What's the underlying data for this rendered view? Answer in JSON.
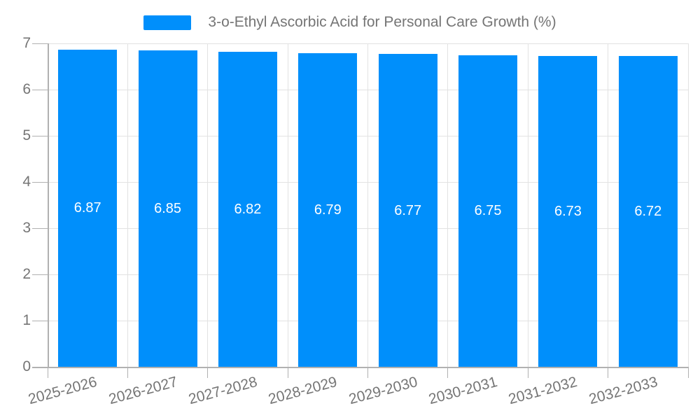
{
  "legend": {
    "label": "3-o-Ethyl Ascorbic Acid for Personal Care Growth (%)"
  },
  "colors": {
    "bar": "#008FFB",
    "axis_line": "#b1b1b1",
    "gridline": "#e2e2e2",
    "tick_label": "#757575",
    "data_label": "#ffffff"
  },
  "chart_data": {
    "type": "bar",
    "title": "3-o-Ethyl Ascorbic Acid for Personal Care Growth (%)",
    "categories": [
      "2025-2026",
      "2026-2027",
      "2027-2028",
      "2028-2029",
      "2029-2030",
      "2030-2031",
      "2031-2032",
      "2032-2033"
    ],
    "values": [
      6.87,
      6.85,
      6.82,
      6.79,
      6.77,
      6.75,
      6.73,
      6.72
    ],
    "data_labels": [
      "6.87",
      "6.85",
      "6.82",
      "6.79",
      "6.77",
      "6.75",
      "6.73",
      "6.72"
    ],
    "xlabel": "",
    "ylabel": "",
    "ylim": [
      0,
      7
    ],
    "yticks": [
      0,
      1,
      2,
      3,
      4,
      5,
      6,
      7
    ],
    "grid": true,
    "legend_position": "top",
    "bar_color": "#008FFB",
    "x_label_rotation_deg": -15
  }
}
